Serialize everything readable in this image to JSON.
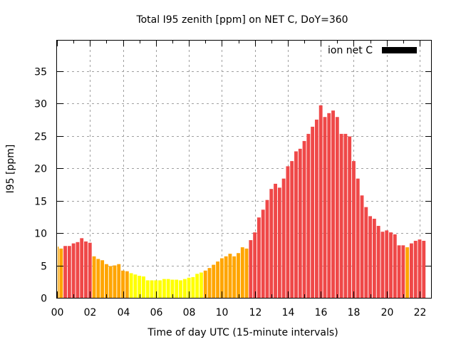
{
  "chart_data": {
    "type": "bar",
    "title": "Total I95 zenith [ppm] on NET C, DoY=360",
    "xlabel": "Time of day UTC (15-minute intervals)",
    "ylabel": "I95 [ppm]",
    "ylim": [
      0,
      39.8
    ],
    "xlim_hours": [
      0,
      22.75
    ],
    "grid": true,
    "legend": {
      "label": "ion net C",
      "placement": "top-right",
      "color": "#000000"
    },
    "yticks": [
      0,
      5,
      10,
      15,
      20,
      25,
      30,
      35
    ],
    "ytick_labels": [
      "0",
      "5",
      "10",
      "15",
      "20",
      "25",
      "30",
      "35"
    ],
    "xticks_hours": [
      0,
      2,
      4,
      6,
      8,
      10,
      12,
      14,
      16,
      18,
      20,
      22
    ],
    "xtick_labels": [
      "00",
      "02",
      "04",
      "06",
      "08",
      "10",
      "12",
      "14",
      "16",
      "18",
      "20",
      "22"
    ],
    "bin_minutes": 15,
    "color_scale": [
      {
        "max": 4,
        "color": "#ffff00"
      },
      {
        "max": 8,
        "color": "#ffa500"
      },
      {
        "max": 1000,
        "color": "#ef4848"
      }
    ],
    "values": [
      7.9,
      7.6,
      8.0,
      8.0,
      8.4,
      8.6,
      9.2,
      8.7,
      8.5,
      6.4,
      6.0,
      5.8,
      5.2,
      4.9,
      5.0,
      5.2,
      4.2,
      4.1,
      3.8,
      3.6,
      3.4,
      3.3,
      2.7,
      2.7,
      2.7,
      2.7,
      2.9,
      2.9,
      2.8,
      2.8,
      2.7,
      2.9,
      3.1,
      3.2,
      3.7,
      3.9,
      4.2,
      4.6,
      5.1,
      5.6,
      6.1,
      6.4,
      6.8,
      6.4,
      6.9,
      7.8,
      7.6,
      8.9,
      10.1,
      12.4,
      13.6,
      15.1,
      16.8,
      17.6,
      17.0,
      18.4,
      20.3,
      21.1,
      22.6,
      23.0,
      24.2,
      25.3,
      26.4,
      27.5,
      29.7,
      27.9,
      28.5,
      28.9,
      27.9,
      25.3,
      25.3,
      24.9,
      21.1,
      18.4,
      15.8,
      14.0,
      12.6,
      12.2,
      11.1,
      10.2,
      10.4,
      10.1,
      9.8,
      8.1,
      8.1,
      7.8,
      8.4,
      8.8,
      9.0,
      8.8
    ]
  }
}
